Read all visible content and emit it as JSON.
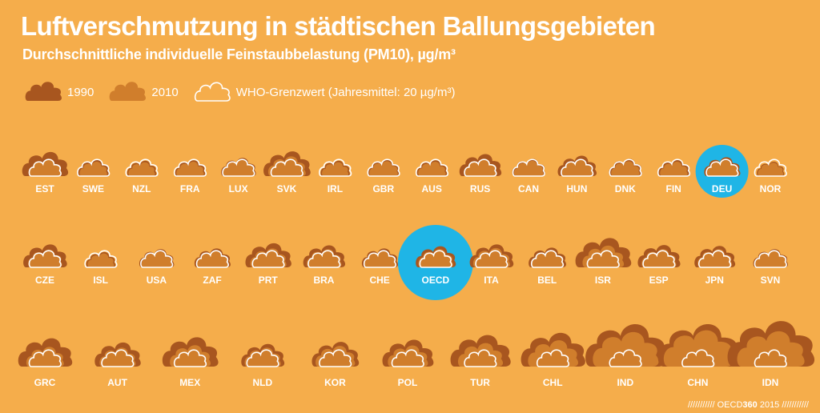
{
  "chart_data": {
    "type": "pictogram",
    "title": "Luftverschmutzung in städtischen Ballungsgebieten",
    "subtitle": "Durchschnittliche individuelle Feinstaubbelastung (PM10), µg/m³",
    "who_limit": 20,
    "legend": [
      {
        "key": "1990",
        "label": "1990",
        "color": "#A8561F"
      },
      {
        "key": "2010",
        "label": "2010",
        "color": "#D07E2C"
      },
      {
        "key": "who",
        "label": "WHO-Grenzwert (Jahresmittel: 20 µg/m³)",
        "color": "#ffffff"
      }
    ],
    "highlight_color": "#1FB5E6",
    "rows": [
      [
        {
          "code": "EST",
          "v1990": 42,
          "v2010": 22
        },
        {
          "code": "SWE",
          "v1990": 19,
          "v2010": 15
        },
        {
          "code": "NZL",
          "v1990": 17,
          "v2010": 14
        },
        {
          "code": "FRA",
          "v1990": 18,
          "v2010": 15
        },
        {
          "code": "LUX",
          "v1990": 24,
          "v2010": 19
        },
        {
          "code": "SVK",
          "v1990": 44,
          "v2010": 28
        },
        {
          "code": "IRL",
          "v1990": 17,
          "v2010": 14
        },
        {
          "code": "GBR",
          "v1990": 19,
          "v2010": 16
        },
        {
          "code": "AUS",
          "v1990": 18,
          "v2010": 15
        },
        {
          "code": "RUS",
          "v1990": 35,
          "v2010": 22
        },
        {
          "code": "CAN",
          "v1990": 22,
          "v2010": 17
        },
        {
          "code": "HUN",
          "v1990": 30,
          "v2010": 21
        },
        {
          "code": "DNK",
          "v1990": 22,
          "v2010": 16
        },
        {
          "code": "FIN",
          "v1990": 19,
          "v2010": 15
        },
        {
          "code": "DEU",
          "v1990": 26,
          "v2010": 18,
          "highlight": true
        },
        {
          "code": "NOR",
          "v1990": 15,
          "v2010": 13
        }
      ],
      [
        {
          "code": "CZE",
          "v1990": 38,
          "v2010": 23
        },
        {
          "code": "ISL",
          "v1990": 17,
          "v2010": 14
        },
        {
          "code": "USA",
          "v1990": 24,
          "v2010": 18
        },
        {
          "code": "ZAF",
          "v1990": 26,
          "v2010": 21
        },
        {
          "code": "PRT",
          "v1990": 42,
          "v2010": 26
        },
        {
          "code": "BRA",
          "v1990": 35,
          "v2010": 24
        },
        {
          "code": "CHE",
          "v1990": 26,
          "v2010": 21
        },
        {
          "code": "OECD",
          "v1990": 32,
          "v2010": 24,
          "highlight": true
        },
        {
          "code": "ITA",
          "v1990": 38,
          "v2010": 27
        },
        {
          "code": "BEL",
          "v1990": 28,
          "v2010": 22
        },
        {
          "code": "ISR",
          "v1990": 62,
          "v2010": 34
        },
        {
          "code": "ESP",
          "v1990": 36,
          "v2010": 24
        },
        {
          "code": "JPN",
          "v1990": 33,
          "v2010": 24
        },
        {
          "code": "SVN",
          "v1990": 24,
          "v2010": 19
        }
      ],
      [
        {
          "code": "GRC",
          "v1990": 58,
          "v2010": 28
        },
        {
          "code": "AUT",
          "v1990": 42,
          "v2010": 26
        },
        {
          "code": "MEX",
          "v1990": 62,
          "v2010": 33
        },
        {
          "code": "NLD",
          "v1990": 37,
          "v2010": 26
        },
        {
          "code": "KOR",
          "v1990": 44,
          "v2010": 31
        },
        {
          "code": "POL",
          "v1990": 52,
          "v2010": 32
        },
        {
          "code": "TUR",
          "v1990": 72,
          "v2010": 40
        },
        {
          "code": "CHL",
          "v1990": 82,
          "v2010": 50
        },
        {
          "code": "IND",
          "v1990": 130,
          "v2010": 86
        },
        {
          "code": "CHN",
          "v1990": 130,
          "v2010": 95
        },
        {
          "code": "IDN",
          "v1990": 150,
          "v2010": 90
        }
      ]
    ]
  },
  "credit": {
    "slashes_left": "///////////",
    "org": "OECD",
    "num": "360",
    "year": "2015",
    "slashes_right": "///////////"
  }
}
